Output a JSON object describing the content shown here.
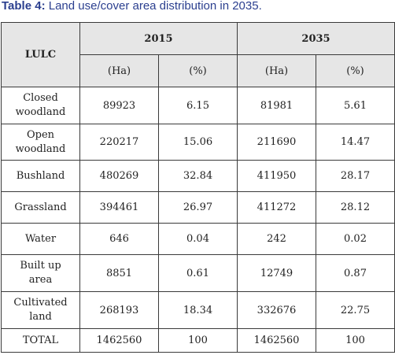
{
  "caption": {
    "label": "Table 4:",
    "text": " Land use/cover area distribution in 2035."
  },
  "table": {
    "row_header": "LULC",
    "years": [
      "2015",
      "2035"
    ],
    "units": [
      "(Ha)",
      "(%)",
      "(Ha)",
      "(%)"
    ],
    "rows": [
      {
        "class_line1": "Closed",
        "class_line2": "woodland",
        "ha_2015": "89923",
        "pct_2015": "6.15",
        "ha_2035": "81981",
        "pct_2035": "5.61"
      },
      {
        "class_line1": "Open",
        "class_line2": "woodland",
        "ha_2015": "220217",
        "pct_2015": "15.06",
        "ha_2035": "211690",
        "pct_2035": "14.47"
      },
      {
        "class_line1": "Bushland",
        "class_line2": "",
        "ha_2015": "480269",
        "pct_2015": "32.84",
        "ha_2035": "411950",
        "pct_2035": "28.17"
      },
      {
        "class_line1": "Grassland",
        "class_line2": "",
        "ha_2015": "394461",
        "pct_2015": "26.97",
        "ha_2035": "411272",
        "pct_2035": "28.12"
      },
      {
        "class_line1": "Water",
        "class_line2": "",
        "ha_2015": "646",
        "pct_2015": "0.04",
        "ha_2035": "242",
        "pct_2035": "0.02"
      },
      {
        "class_line1": "Built up",
        "class_line2": "area",
        "ha_2015": "8851",
        "pct_2015": "0.61",
        "ha_2035": "12749",
        "pct_2035": "0.87"
      },
      {
        "class_line1": "Cultivated",
        "class_line2": "land",
        "ha_2015": "268193",
        "pct_2015": "18.34",
        "ha_2035": "332676",
        "pct_2035": "22.75"
      },
      {
        "class_line1": "TOTAL",
        "class_line2": "",
        "ha_2015": "1462560",
        "pct_2015": "100",
        "ha_2035": "1462560",
        "pct_2035": "100"
      }
    ]
  }
}
